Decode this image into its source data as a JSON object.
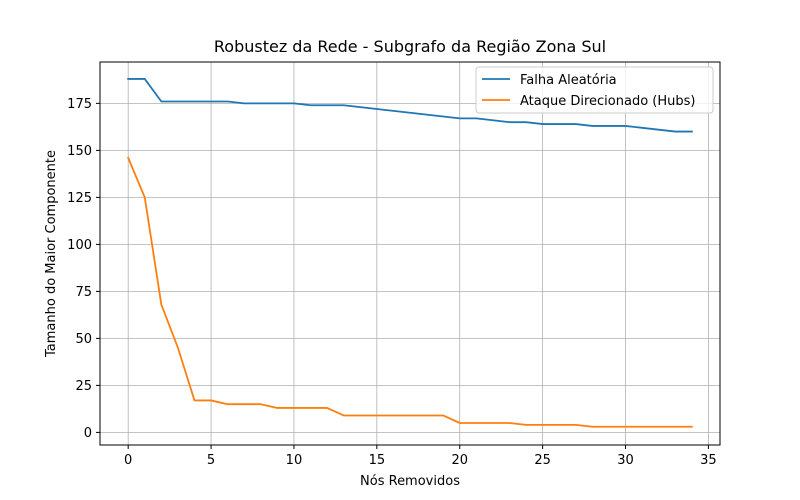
{
  "chart_data": {
    "type": "line",
    "title": "Robustez da Rede - Subgrafo da Região Zona Sul",
    "xlabel": "Nós Removidos",
    "ylabel": "Tamanho do Maior Componente",
    "xlim": [
      -1.7,
      35.7
    ],
    "ylim": [
      -6.7,
      197.0
    ],
    "xticks": [
      0,
      5,
      10,
      15,
      20,
      25,
      30,
      35
    ],
    "yticks": [
      0,
      25,
      50,
      75,
      100,
      125,
      150,
      175
    ],
    "grid": true,
    "legend_position": "top-right",
    "series": [
      {
        "name": "Falha Aleatória",
        "color": "#1f77b4",
        "x": [
          0,
          1,
          2,
          3,
          4,
          5,
          6,
          7,
          8,
          9,
          10,
          11,
          12,
          13,
          14,
          15,
          16,
          17,
          18,
          19,
          20,
          21,
          22,
          23,
          24,
          25,
          26,
          27,
          28,
          29,
          30,
          31,
          32,
          33,
          34
        ],
        "y": [
          188,
          188,
          176,
          176,
          176,
          176,
          176,
          175,
          175,
          175,
          175,
          174,
          174,
          174,
          173,
          172,
          171,
          170,
          169,
          168,
          167,
          167,
          166,
          165,
          165,
          164,
          164,
          164,
          163,
          163,
          163,
          162,
          161,
          160,
          160
        ]
      },
      {
        "name": "Ataque Direcionado (Hubs)",
        "color": "#ff7f0e",
        "x": [
          0,
          1,
          2,
          3,
          4,
          5,
          6,
          7,
          8,
          9,
          10,
          11,
          12,
          13,
          14,
          15,
          16,
          17,
          18,
          19,
          20,
          21,
          22,
          23,
          24,
          25,
          26,
          27,
          28,
          29,
          30,
          31,
          32,
          33,
          34
        ],
        "y": [
          146,
          125,
          68,
          45,
          17,
          17,
          15,
          15,
          15,
          13,
          13,
          13,
          13,
          9,
          9,
          9,
          9,
          9,
          9,
          9,
          5,
          5,
          5,
          5,
          4,
          4,
          4,
          4,
          3,
          3,
          3,
          3,
          3,
          3,
          3
        ]
      }
    ]
  }
}
